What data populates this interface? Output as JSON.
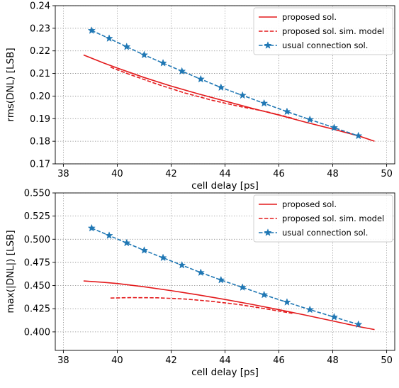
{
  "chart_data": [
    {
      "type": "line",
      "xlabel": "cell delay [ps]",
      "ylabel": "rms(DNL) [LSB]",
      "xlim": [
        37.7,
        50.3
      ],
      "ylim": [
        0.17,
        0.24
      ],
      "xticks": [
        38,
        40,
        42,
        44,
        46,
        48,
        50
      ],
      "yticks": [
        0.17,
        0.18,
        0.19,
        0.2,
        0.21,
        0.22,
        0.23,
        0.24
      ],
      "xtick_labels": [
        "38",
        "40",
        "42",
        "44",
        "46",
        "48",
        "50"
      ],
      "ytick_labels": [
        "0.17",
        "0.18",
        "0.19",
        "0.20",
        "0.21",
        "0.22",
        "0.23",
        "0.24"
      ],
      "grid": true,
      "legend_position": "top-right",
      "series": [
        {
          "name": "proposed sol.",
          "style": "solid",
          "color": "#e31a1c",
          "x": [
            38.75,
            39.5,
            40.0,
            41.0,
            42.0,
            43.0,
            44.0,
            45.0,
            46.0,
            47.0,
            48.0,
            49.0,
            49.55
          ],
          "y": [
            0.2182,
            0.2146,
            0.2124,
            0.2082,
            0.2044,
            0.201,
            0.1978,
            0.1946,
            0.1916,
            0.1884,
            0.1854,
            0.1822,
            0.18
          ]
        },
        {
          "name": "proposed sol. sim. model",
          "style": "dashed",
          "color": "#e31a1c",
          "x": [
            39.75,
            40.5,
            41.5,
            42.5,
            43.5,
            44.5,
            45.5,
            46.5
          ],
          "y": [
            0.2128,
            0.2094,
            0.2052,
            0.2014,
            0.1982,
            0.1955,
            0.1932,
            0.1902
          ]
        },
        {
          "name": "usual connection sol.",
          "style": "dashed-star",
          "color": "#1f77b4",
          "x": [
            39.05,
            39.7,
            40.35,
            41.0,
            41.7,
            42.4,
            43.1,
            43.85,
            44.65,
            45.45,
            46.3,
            47.15,
            48.05,
            48.95
          ],
          "y": [
            0.229,
            0.2255,
            0.2218,
            0.2182,
            0.2146,
            0.211,
            0.2075,
            0.2038,
            0.2003,
            0.1968,
            0.1931,
            0.1896,
            0.186,
            0.1824
          ]
        }
      ]
    },
    {
      "type": "line",
      "xlabel": "cell delay [ps]",
      "ylabel": "max(|DNL|) [LSB]",
      "xlim": [
        37.7,
        50.3
      ],
      "ylim": [
        0.38,
        0.55
      ],
      "xticks": [
        38,
        40,
        42,
        44,
        46,
        48,
        50
      ],
      "yticks": [
        0.4,
        0.425,
        0.45,
        0.475,
        0.5,
        0.525,
        0.55
      ],
      "xtick_labels": [
        "38",
        "40",
        "42",
        "44",
        "46",
        "48",
        "50"
      ],
      "ytick_labels": [
        "0.400",
        "0.425",
        "0.450",
        "0.475",
        "0.500",
        "0.525",
        "0.550"
      ],
      "grid": true,
      "legend_position": "top-right",
      "series": [
        {
          "name": "proposed sol.",
          "style": "solid",
          "color": "#e31a1c",
          "x": [
            38.75,
            39.5,
            40.0,
            41.0,
            42.0,
            43.0,
            44.0,
            45.0,
            46.0,
            47.0,
            48.0,
            49.0,
            49.55
          ],
          "y": [
            0.455,
            0.4535,
            0.4522,
            0.4487,
            0.4445,
            0.44,
            0.435,
            0.4297,
            0.424,
            0.418,
            0.4118,
            0.4055,
            0.4025
          ]
        },
        {
          "name": "proposed sol. sim. model",
          "style": "dashed",
          "color": "#e31a1c",
          "x": [
            39.75,
            40.5,
            41.5,
            42.5,
            43.5,
            44.5,
            45.5,
            46.5
          ],
          "y": [
            0.4365,
            0.437,
            0.4368,
            0.4355,
            0.433,
            0.4296,
            0.425,
            0.42
          ]
        },
        {
          "name": "usual connection sol.",
          "style": "dashed-star",
          "color": "#1f77b4",
          "x": [
            39.05,
            39.7,
            40.35,
            41.0,
            41.7,
            42.4,
            43.1,
            43.85,
            44.65,
            45.45,
            46.3,
            47.15,
            48.05,
            48.95
          ],
          "y": [
            0.512,
            0.504,
            0.496,
            0.488,
            0.48,
            0.472,
            0.464,
            0.456,
            0.448,
            0.44,
            0.432,
            0.424,
            0.416,
            0.408
          ]
        }
      ]
    }
  ]
}
